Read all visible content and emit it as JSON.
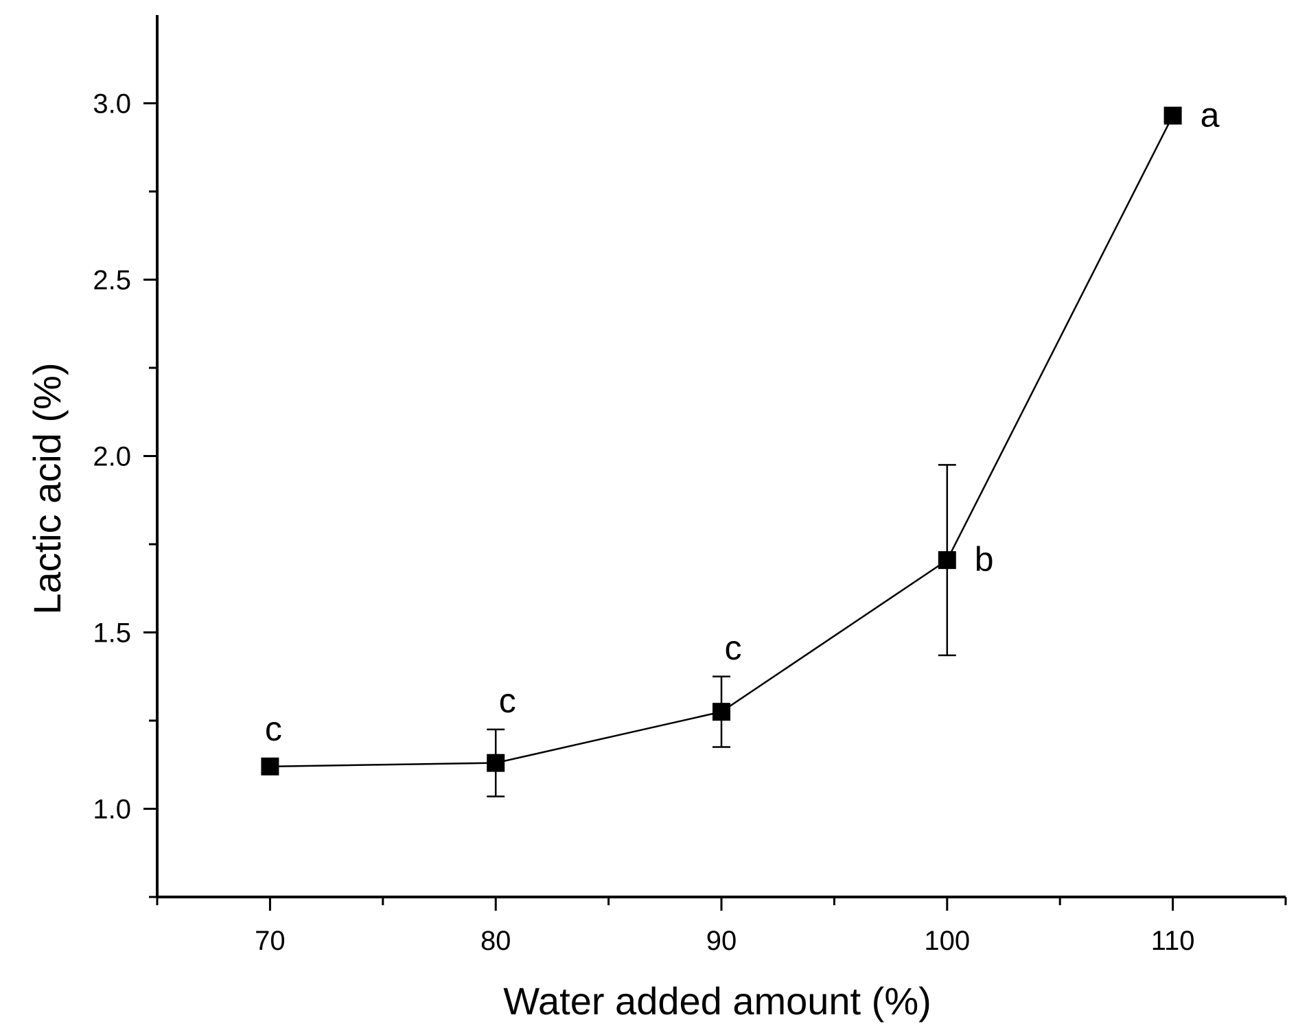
{
  "chart_data": {
    "type": "line",
    "title": "",
    "xlabel": "Water added amount (%)",
    "ylabel": "Lactic acid (%)",
    "xlim": [
      65,
      115
    ],
    "ylim": [
      0.75,
      3.25
    ],
    "x_ticks": [
      70,
      80,
      90,
      100,
      110
    ],
    "x_tick_labels": [
      "70",
      "80",
      "90",
      "100",
      "110"
    ],
    "x_minor_ticks": [
      65,
      75,
      85,
      95,
      105,
      115
    ],
    "y_ticks": [
      1.0,
      1.5,
      2.0,
      2.5,
      3.0
    ],
    "y_tick_labels": [
      "1.0",
      "1.5",
      "2.0",
      "2.5",
      "3.0"
    ],
    "y_minor_ticks": [
      0.75,
      1.25,
      1.75,
      2.25,
      2.75
    ],
    "grid": false,
    "colors": {
      "line": "#000000",
      "marker": "#000000",
      "axis": "#000000"
    },
    "series": [
      {
        "name": "Lactic acid",
        "marker": "square",
        "points": [
          {
            "x": 70,
            "y": 1.12,
            "err": 0.0,
            "sig": "c"
          },
          {
            "x": 80,
            "y": 1.13,
            "err": 0.095,
            "sig": "c"
          },
          {
            "x": 90,
            "y": 1.275,
            "err": 0.1,
            "sig": "c"
          },
          {
            "x": 100,
            "y": 1.705,
            "err": 0.27,
            "sig": "b"
          },
          {
            "x": 110,
            "y": 2.965,
            "err": 0.0,
            "sig": "a"
          }
        ]
      }
    ]
  }
}
